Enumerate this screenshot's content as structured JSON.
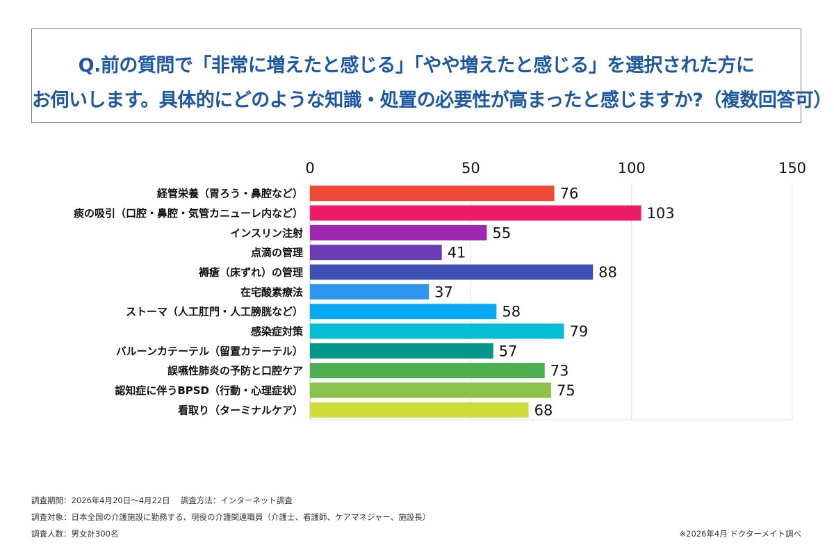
{
  "question": {
    "line1": "Q.前の質問で「非常に増えたと感じる」「やや増えたと感じる」を選択された方に",
    "line2": "お伺いします。具体的にどのような知識・処置の必要性が高まったと感じますか?（複数回答可）"
  },
  "footer": {
    "period": "調査期間：2026年4月20日～4月22日　 調査方法：インターネット調査",
    "target": "調査対象：日本全国の介護施設に勤務する、現役の介護関連職員（介護士、看護師、ケアマネジャー、施設長）",
    "count": "調査人数：男女計300名",
    "source": "※2026年4月 ドクターメイト調べ"
  },
  "chart_data": {
    "type": "bar",
    "orientation": "horizontal",
    "categories": [
      "経管栄養（胃ろう・鼻腔など）",
      "痰の吸引（口腔・鼻腔・気管カニューレ内など）",
      "インスリン注射",
      "点滴の管理",
      "褥瘡（床ずれ）の管理",
      "在宅酸素療法",
      "ストーマ（人工肛門・人工膀胱など）",
      "感染症対策",
      "バルーンカテーテル（留置カテーテル）",
      "誤嚥性肺炎の予防と口腔ケア",
      "認知症に伴うBPSD（行動・心理症状）",
      "看取り（ターミナルケア）"
    ],
    "values": [
      76,
      103,
      55,
      41,
      88,
      37,
      58,
      79,
      57,
      73,
      75,
      68
    ],
    "colors": [
      "#f04a36",
      "#eb1c64",
      "#9c29b0",
      "#6a3bb5",
      "#3f51b5",
      "#2f96ef",
      "#04a8f4",
      "#04bcd4",
      "#019688",
      "#4caf50",
      "#8bc34a",
      "#cddc39"
    ],
    "xticks": [
      0,
      50,
      100,
      150
    ],
    "xlim": [
      0,
      150
    ],
    "grid": true,
    "axis_position": "top"
  }
}
